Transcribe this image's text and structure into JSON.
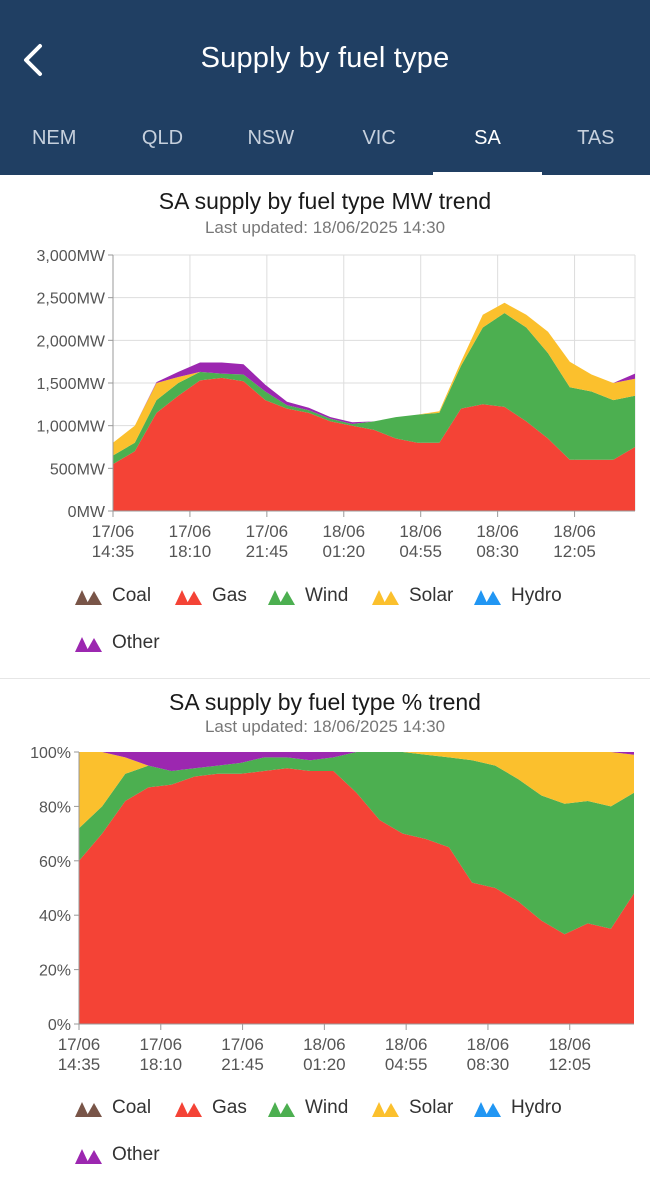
{
  "header": {
    "title": "Supply by fuel type",
    "tabs": [
      {
        "label": "NEM"
      },
      {
        "label": "QLD"
      },
      {
        "label": "NSW"
      },
      {
        "label": "VIC"
      },
      {
        "label": "SA",
        "active": true
      },
      {
        "label": "TAS"
      }
    ]
  },
  "colors": {
    "header_bg": "#203f63",
    "Coal": "#795548",
    "Gas": "#f44336",
    "Wind": "#4caf50",
    "Solar": "#fbc02d",
    "Hydro": "#2196f3",
    "Other": "#9c27b0"
  },
  "legend": [
    "Coal",
    "Gas",
    "Wind",
    "Solar",
    "Hydro",
    "Other"
  ],
  "charts": [
    {
      "title": "SA supply by fuel type MW trend",
      "subtitle": "Last updated: 18/06/2025 14:30"
    },
    {
      "title": "SA supply by fuel type % trend",
      "subtitle": "Last updated: 18/06/2025 14:30"
    }
  ],
  "chart_data": [
    {
      "type": "area",
      "stacked": true,
      "title": "SA supply by fuel type MW trend",
      "subtitle": "Last updated: 18/06/2025 14:30",
      "x": [
        "17/06 14:35",
        "17/06 15:35",
        "17/06 16:35",
        "17/06 17:35",
        "17/06 18:35",
        "17/06 19:35",
        "17/06 20:35",
        "17/06 21:35",
        "17/06 22:35",
        "17/06 23:35",
        "18/06 00:35",
        "18/06 01:35",
        "18/06 02:35",
        "18/06 03:35",
        "18/06 04:35",
        "18/06 05:35",
        "18/06 06:35",
        "18/06 07:35",
        "18/06 08:35",
        "18/06 09:35",
        "18/06 10:35",
        "18/06 11:35",
        "18/06 12:35",
        "18/06 13:35",
        "18/06 14:25"
      ],
      "x_ticks": [
        "17/06\n14:35",
        "17/06\n18:10",
        "17/06\n21:45",
        "18/06\n01:20",
        "18/06\n04:55",
        "18/06\n08:30",
        "18/06\n12:05"
      ],
      "y_ticks": [
        "0MW",
        "500MW",
        "1,000MW",
        "1,500MW",
        "2,000MW",
        "2,500MW",
        "3,000MW"
      ],
      "ylim": [
        0,
        3000
      ],
      "grid": true,
      "series": [
        {
          "name": "Coal",
          "values": [
            0,
            0,
            0,
            0,
            0,
            0,
            0,
            0,
            0,
            0,
            0,
            0,
            0,
            0,
            0,
            0,
            0,
            0,
            0,
            0,
            0,
            0,
            0,
            0,
            0
          ]
        },
        {
          "name": "Gas",
          "values": [
            550,
            700,
            1150,
            1350,
            1530,
            1560,
            1520,
            1300,
            1200,
            1150,
            1050,
            1000,
            950,
            850,
            800,
            800,
            1200,
            1250,
            1220,
            1050,
            850,
            600,
            600,
            600,
            750
          ]
        },
        {
          "name": "Wind",
          "values": [
            100,
            100,
            150,
            150,
            100,
            50,
            80,
            100,
            40,
            30,
            30,
            20,
            100,
            250,
            330,
            350,
            500,
            900,
            1100,
            1100,
            1000,
            850,
            800,
            700,
            600
          ]
        },
        {
          "name": "Solar",
          "values": [
            150,
            200,
            200,
            70,
            0,
            0,
            0,
            0,
            0,
            0,
            0,
            0,
            0,
            0,
            0,
            20,
            50,
            150,
            120,
            150,
            250,
            300,
            200,
            200,
            200
          ]
        },
        {
          "name": "Hydro",
          "values": [
            0,
            0,
            0,
            0,
            0,
            0,
            0,
            0,
            0,
            0,
            0,
            0,
            0,
            0,
            0,
            0,
            0,
            0,
            0,
            0,
            0,
            0,
            0,
            0,
            0
          ]
        },
        {
          "name": "Other",
          "values": [
            0,
            0,
            10,
            60,
            110,
            130,
            120,
            80,
            40,
            30,
            20,
            20,
            0,
            0,
            0,
            0,
            0,
            0,
            0,
            0,
            0,
            0,
            0,
            0,
            60
          ]
        }
      ]
    },
    {
      "type": "area",
      "stacked": true,
      "percent": true,
      "title": "SA supply by fuel type % trend",
      "subtitle": "Last updated: 18/06/2025 14:30",
      "x": [
        "17/06 14:35",
        "17/06 15:35",
        "17/06 16:35",
        "17/06 17:35",
        "17/06 18:35",
        "17/06 19:35",
        "17/06 20:35",
        "17/06 21:35",
        "17/06 22:35",
        "17/06 23:35",
        "18/06 00:35",
        "18/06 01:35",
        "18/06 02:35",
        "18/06 03:35",
        "18/06 04:35",
        "18/06 05:35",
        "18/06 06:35",
        "18/06 07:35",
        "18/06 08:35",
        "18/06 09:35",
        "18/06 10:35",
        "18/06 11:35",
        "18/06 12:35",
        "18/06 13:35",
        "18/06 14:25"
      ],
      "x_ticks": [
        "17/06\n14:35",
        "17/06\n18:10",
        "17/06\n21:45",
        "18/06\n01:20",
        "18/06\n04:55",
        "18/06\n08:30",
        "18/06\n12:05"
      ],
      "y_ticks": [
        "0%",
        "20%",
        "40%",
        "60%",
        "80%",
        "100%"
      ],
      "ylim": [
        0,
        100
      ],
      "grid": false,
      "series": [
        {
          "name": "Coal",
          "values": [
            0,
            0,
            0,
            0,
            0,
            0,
            0,
            0,
            0,
            0,
            0,
            0,
            0,
            0,
            0,
            0,
            0,
            0,
            0,
            0,
            0,
            0,
            0,
            0,
            0
          ]
        },
        {
          "name": "Gas",
          "values": [
            60,
            70,
            82,
            87,
            88,
            91,
            92,
            92,
            93,
            94,
            93,
            93,
            85,
            75,
            70,
            68,
            65,
            52,
            50,
            45,
            38,
            33,
            37,
            35,
            48
          ]
        },
        {
          "name": "Wind",
          "values": [
            12,
            10,
            10,
            8,
            5,
            3,
            3,
            4,
            5,
            4,
            4,
            5,
            15,
            25,
            30,
            31,
            33,
            45,
            45,
            45,
            46,
            48,
            45,
            45,
            37
          ]
        },
        {
          "name": "Solar",
          "values": [
            28,
            20,
            6,
            0,
            0,
            0,
            0,
            0,
            0,
            0,
            0,
            0,
            0,
            0,
            0,
            1,
            2,
            3,
            5,
            10,
            16,
            19,
            18,
            20,
            14
          ]
        },
        {
          "name": "Hydro",
          "values": [
            0,
            0,
            0,
            0,
            0,
            0,
            0,
            0,
            0,
            0,
            0,
            0,
            0,
            0,
            0,
            0,
            0,
            0,
            0,
            0,
            0,
            0,
            0,
            0,
            0
          ]
        },
        {
          "name": "Other",
          "values": [
            0,
            0,
            2,
            5,
            7,
            6,
            5,
            4,
            2,
            2,
            3,
            2,
            0,
            0,
            0,
            0,
            0,
            0,
            0,
            0,
            0,
            0,
            0,
            0,
            1
          ]
        }
      ]
    }
  ]
}
